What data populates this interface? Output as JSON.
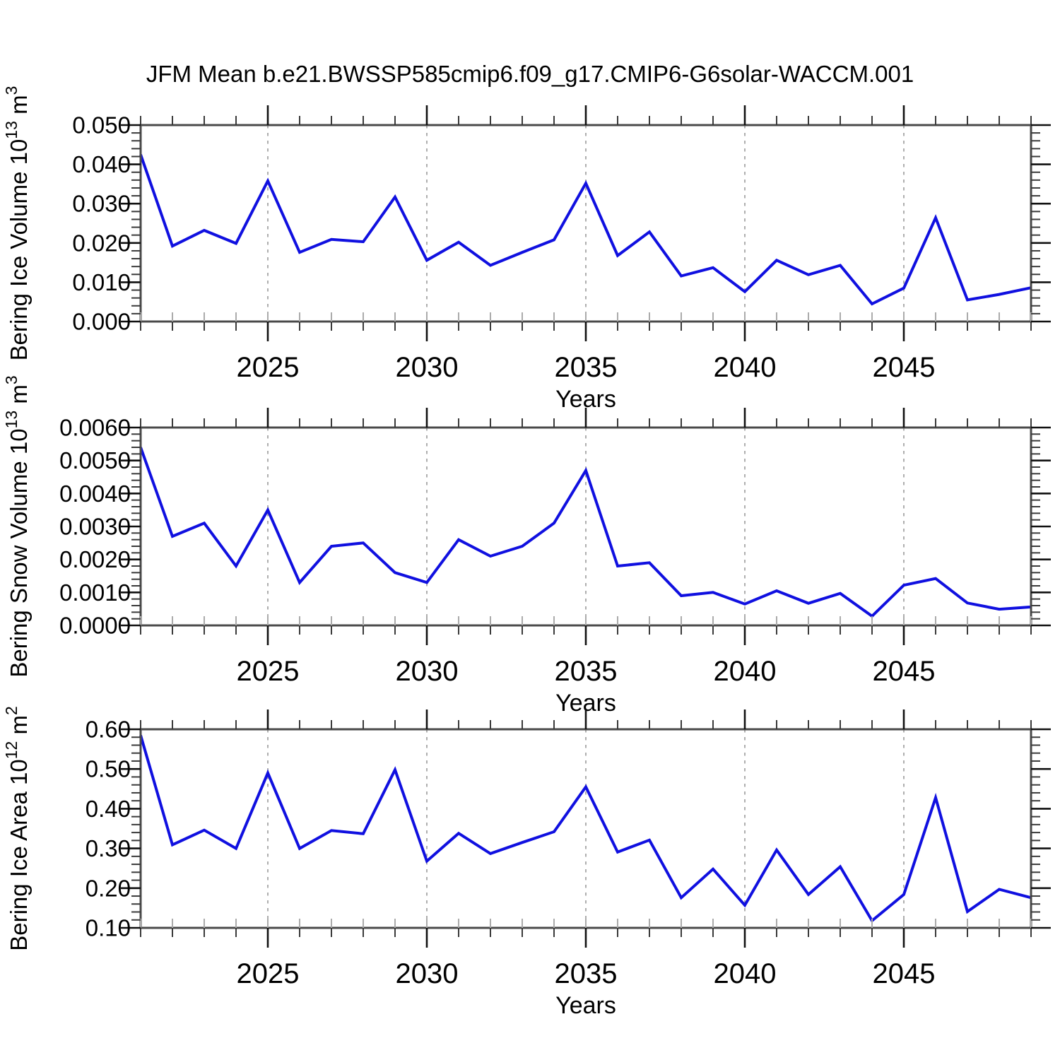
{
  "title": "JFM Mean b.e21.BWSSP585cmip6.f09_g17.CMIP6-G6solar-WACCM.001",
  "colors": {
    "line": "#1010e0",
    "grid": "#9a9a9a",
    "frame": "#4a4a4a",
    "tick_major": "#111111",
    "tick_minor": "#3a3a3a",
    "tick_inner": "#ababab",
    "text": "#000000",
    "background": "#ffffff"
  },
  "x_axis": {
    "label": "Years",
    "tick_labels": [
      "2025",
      "2030",
      "2035",
      "2040",
      "2045"
    ],
    "major_years": [
      2025,
      2030,
      2035,
      2040,
      2045
    ],
    "range": [
      2021,
      2049
    ],
    "minor_step": 1
  },
  "chart_data": [
    {
      "id": "bering-ice-volume",
      "type": "line",
      "title": "",
      "xlabel": "Years",
      "ylabel_text": "Bering Ice Volume 10^13 m^3",
      "ylabel_parts": [
        {
          "t": "Bering Ice Volume 10"
        },
        {
          "t": "13",
          "sup": true
        },
        {
          "t": " m"
        },
        {
          "t": "3",
          "sup": true
        }
      ],
      "ylim": [
        0.0,
        0.05
      ],
      "y_tick_values": [
        0.0,
        0.01,
        0.02,
        0.03,
        0.04,
        0.05
      ],
      "y_tick_labels": [
        "0.000",
        "0.010",
        "0.020",
        "0.030",
        "0.040",
        "0.050"
      ],
      "y_minor_step": 0.002,
      "grid": "vertical-dashed",
      "legend": "none",
      "years": [
        2021,
        2022,
        2023,
        2024,
        2025,
        2026,
        2027,
        2028,
        2029,
        2030,
        2031,
        2032,
        2033,
        2034,
        2035,
        2036,
        2037,
        2038,
        2039,
        2040,
        2041,
        2042,
        2043,
        2044,
        2045,
        2046,
        2047,
        2048,
        2049
      ],
      "values": [
        0.0425,
        0.0192,
        0.0232,
        0.0199,
        0.0358,
        0.0176,
        0.0209,
        0.0203,
        0.0317,
        0.0156,
        0.0202,
        0.0143,
        0.0176,
        0.0208,
        0.0352,
        0.0168,
        0.0228,
        0.0116,
        0.0137,
        0.0076,
        0.0156,
        0.0119,
        0.0143,
        0.0045,
        0.0085,
        0.0264,
        0.0055,
        0.0069,
        0.0086
      ]
    },
    {
      "id": "bering-snow-volume",
      "type": "line",
      "title": "",
      "xlabel": "Years",
      "ylabel_text": "Bering Snow Volume 10^13 m^3",
      "ylabel_parts": [
        {
          "t": "Bering Snow Volume 10"
        },
        {
          "t": "13",
          "sup": true
        },
        {
          "t": " m"
        },
        {
          "t": "3",
          "sup": true
        }
      ],
      "ylim": [
        0.0,
        0.006
      ],
      "y_tick_values": [
        0.0,
        0.001,
        0.002,
        0.003,
        0.004,
        0.005,
        0.006
      ],
      "y_tick_labels": [
        "0.0000",
        "0.0010",
        "0.0020",
        "0.0030",
        "0.0040",
        "0.0050",
        "0.0060"
      ],
      "y_minor_step": 0.0002,
      "grid": "vertical-dashed",
      "legend": "none",
      "years": [
        2021,
        2022,
        2023,
        2024,
        2025,
        2026,
        2027,
        2028,
        2029,
        2030,
        2031,
        2032,
        2033,
        2034,
        2035,
        2036,
        2037,
        2038,
        2039,
        2040,
        2041,
        2042,
        2043,
        2044,
        2045,
        2046,
        2047,
        2048,
        2049
      ],
      "values": [
        0.0054,
        0.0027,
        0.0031,
        0.0018,
        0.0035,
        0.0013,
        0.0024,
        0.0025,
        0.0016,
        0.0013,
        0.0026,
        0.0021,
        0.0024,
        0.0031,
        0.0047,
        0.0018,
        0.0019,
        0.0009,
        0.001,
        0.00065,
        0.00105,
        0.00067,
        0.00097,
        0.00028,
        0.00122,
        0.00142,
        0.00068,
        0.00049,
        0.00056
      ]
    },
    {
      "id": "bering-ice-area",
      "type": "line",
      "title": "",
      "xlabel": "Years",
      "ylabel_text": "Bering Ice Area 10^12 m^2",
      "ylabel_parts": [
        {
          "t": "Bering Ice Area 10"
        },
        {
          "t": "12",
          "sup": true
        },
        {
          "t": " m"
        },
        {
          "t": "2",
          "sup": true
        }
      ],
      "ylim": [
        0.1,
        0.6
      ],
      "y_tick_values": [
        0.1,
        0.2,
        0.3,
        0.4,
        0.5,
        0.6
      ],
      "y_tick_labels": [
        "0.10",
        "0.20",
        "0.30",
        "0.40",
        "0.50",
        "0.60"
      ],
      "y_minor_step": 0.02,
      "grid": "vertical-dashed",
      "legend": "none",
      "years": [
        2021,
        2022,
        2023,
        2024,
        2025,
        2026,
        2027,
        2028,
        2029,
        2030,
        2031,
        2032,
        2033,
        2034,
        2035,
        2036,
        2037,
        2038,
        2039,
        2040,
        2041,
        2042,
        2043,
        2044,
        2045,
        2046,
        2047,
        2048,
        2049
      ],
      "values": [
        0.585,
        0.309,
        0.346,
        0.3,
        0.49,
        0.3,
        0.345,
        0.337,
        0.498,
        0.268,
        0.338,
        0.287,
        0.315,
        0.342,
        0.455,
        0.291,
        0.321,
        0.176,
        0.248,
        0.157,
        0.296,
        0.184,
        0.254,
        0.118,
        0.184,
        0.428,
        0.141,
        0.197,
        0.176
      ]
    }
  ]
}
